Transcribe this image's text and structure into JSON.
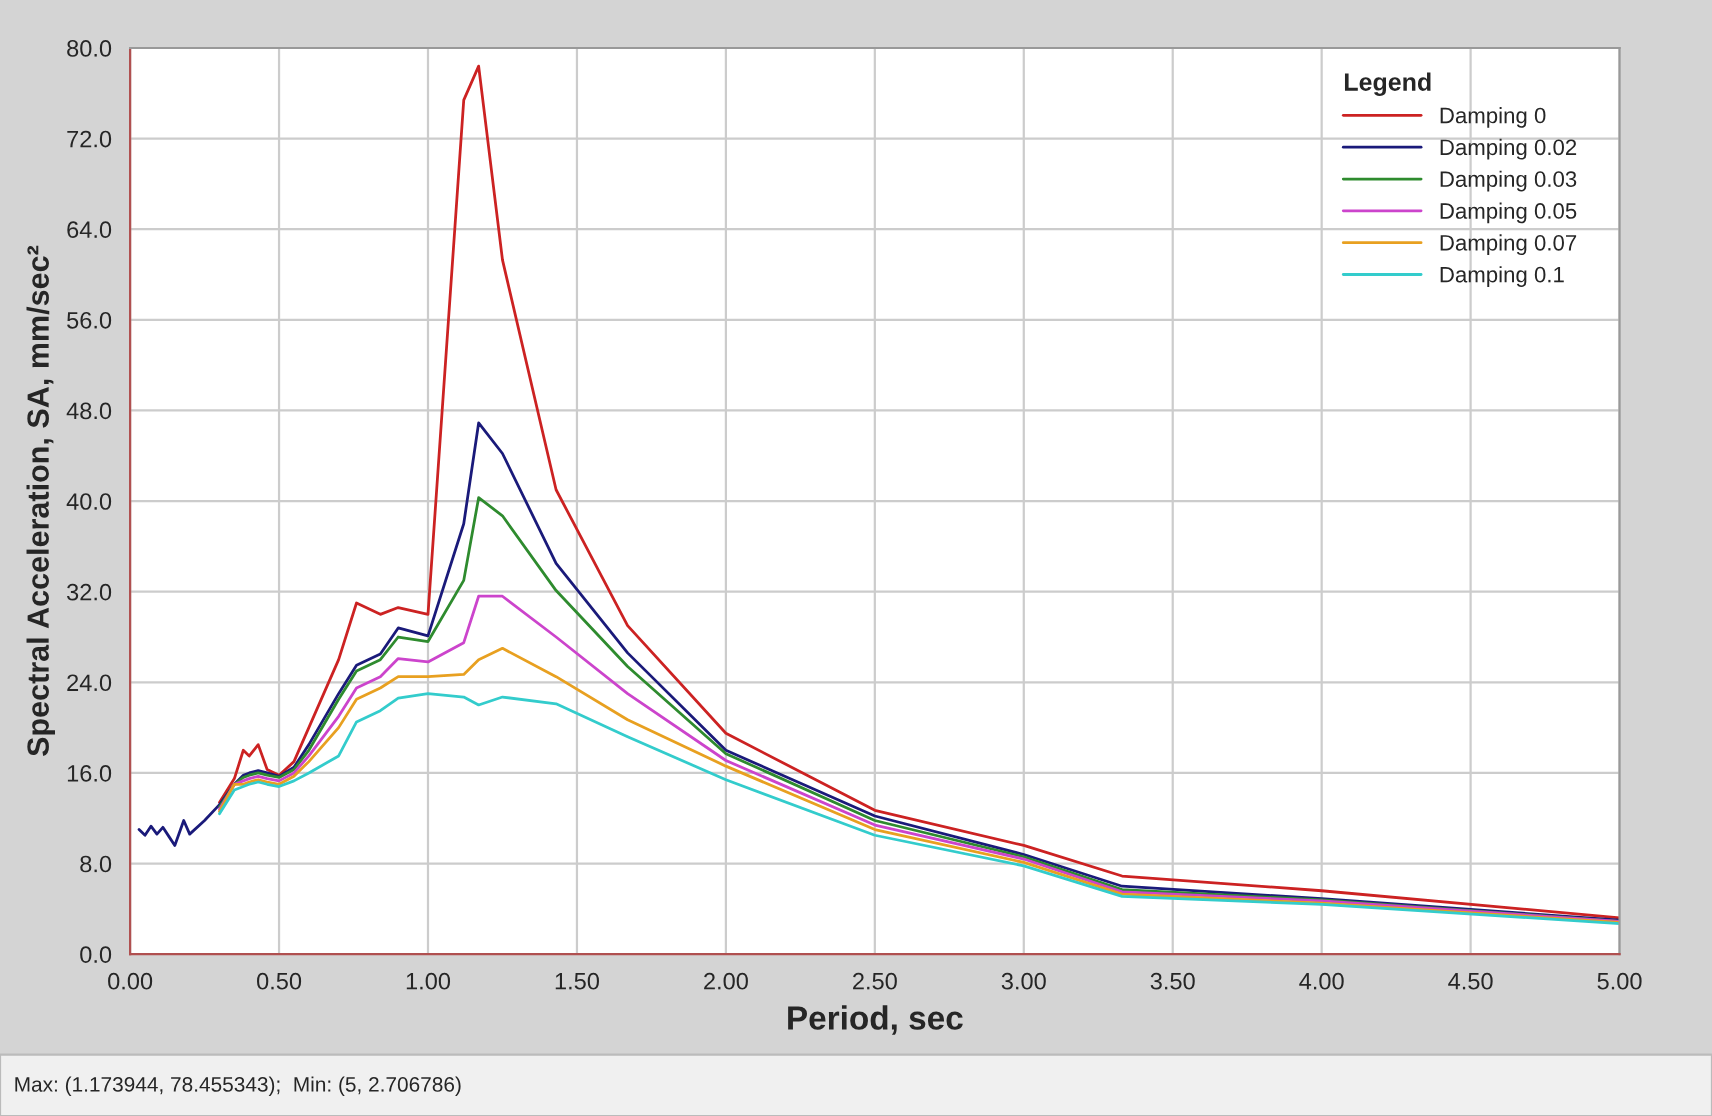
{
  "chart_data": {
    "type": "line",
    "xlabel": "Period, sec",
    "ylabel": "Spectral Acceleration, SA, mm/sec²",
    "legend_title": "Legend",
    "legend": "top right",
    "grid": true,
    "line_style": "solid",
    "marker": "none",
    "x": [
      0.03,
      0.05,
      0.07,
      0.09,
      0.11,
      0.13,
      0.15,
      0.18,
      0.2,
      0.25,
      0.3,
      0.35,
      0.38,
      0.4,
      0.43,
      0.46,
      0.5,
      0.55,
      0.6,
      0.7,
      0.76,
      0.84,
      0.9,
      1.0,
      1.12,
      1.17,
      1.25,
      1.43,
      1.67,
      2.0,
      2.5,
      3.0,
      3.33,
      4.0,
      5.0
    ],
    "series": [
      {
        "name": "Damping 0",
        "color": "#cc2222",
        "values": [
          null,
          null,
          null,
          null,
          null,
          null,
          null,
          null,
          null,
          null,
          13.4,
          15.5,
          18,
          17.5,
          18.5,
          16.3,
          15.8,
          17,
          20,
          26,
          31,
          30,
          30.6,
          30,
          75.4,
          78.4,
          61.3,
          41,
          29,
          19.5,
          12.7,
          9.6,
          6.9,
          5.6,
          3.2
        ]
      },
      {
        "name": "Damping 0.02",
        "color": "#1a1a7a",
        "values": [
          11,
          10.5,
          11.3,
          10.6,
          11.2,
          10.4,
          9.6,
          11.8,
          10.6,
          11.8,
          13.2,
          15,
          15.8,
          16,
          16.2,
          16,
          15.7,
          16.5,
          18.5,
          23,
          25.5,
          26.5,
          28.8,
          28.1,
          38,
          46.9,
          44.2,
          34.5,
          26.6,
          18,
          12.2,
          8.8,
          6,
          4.9,
          3.0
        ]
      },
      {
        "name": "Damping 0.03",
        "color": "#2e8b2e",
        "values": [
          null,
          null,
          null,
          null,
          null,
          null,
          null,
          null,
          null,
          null,
          13.0,
          15,
          15.6,
          15.8,
          16,
          15.8,
          15.6,
          16.3,
          18,
          22.5,
          25,
          26,
          28,
          27.6,
          33,
          40.3,
          38.7,
          32.1,
          25.4,
          17.7,
          11.8,
          8.6,
          5.7,
          4.8,
          2.9
        ]
      },
      {
        "name": "Damping 0.05",
        "color": "#cc44cc",
        "values": [
          null,
          null,
          null,
          null,
          null,
          null,
          null,
          null,
          null,
          null,
          12.8,
          15,
          15.3,
          15.5,
          15.7,
          15.5,
          15.3,
          16,
          17.5,
          21,
          23.5,
          24.5,
          26.1,
          25.8,
          27.5,
          31.6,
          31.6,
          28,
          23,
          17.1,
          11.4,
          8.4,
          5.5,
          4.7,
          2.9
        ]
      },
      {
        "name": "Damping 0.07",
        "color": "#e8a020",
        "values": [
          null,
          null,
          null,
          null,
          null,
          null,
          null,
          null,
          null,
          null,
          12.6,
          15,
          15,
          15.2,
          15.4,
          15.2,
          15,
          15.7,
          17,
          20,
          22.5,
          23.5,
          24.5,
          24.5,
          24.7,
          26,
          27,
          24.5,
          20.7,
          16.6,
          11,
          8.1,
          5.3,
          4.5,
          2.8
        ]
      },
      {
        "name": "Damping 0.1",
        "color": "#33cccc",
        "values": [
          null,
          null,
          null,
          null,
          null,
          null,
          null,
          null,
          null,
          null,
          12.4,
          14.5,
          14.8,
          15,
          15.2,
          15,
          14.8,
          15.3,
          16,
          17.5,
          20.5,
          21.5,
          22.6,
          23,
          22.7,
          22,
          22.7,
          22.1,
          19.2,
          15.4,
          10.5,
          7.8,
          5.1,
          4.4,
          2.7
        ]
      }
    ],
    "xlim": [
      0,
      5
    ],
    "ylim": [
      0,
      80
    ],
    "xticks": [
      {
        "value": 0,
        "label": "0.00"
      },
      {
        "value": 0.5,
        "label": "0.50"
      },
      {
        "value": 1,
        "label": "1.00"
      },
      {
        "value": 1.5,
        "label": "1.50"
      },
      {
        "value": 2,
        "label": "2.00"
      },
      {
        "value": 2.5,
        "label": "2.50"
      },
      {
        "value": 3,
        "label": "3.00"
      },
      {
        "value": 3.5,
        "label": "3.50"
      },
      {
        "value": 4,
        "label": "4.00"
      },
      {
        "value": 4.5,
        "label": "4.50"
      },
      {
        "value": 5,
        "label": "5.00"
      }
    ],
    "yticks": [
      {
        "value": 0,
        "label": "0.0"
      },
      {
        "value": 8,
        "label": "8.0"
      },
      {
        "value": 16,
        "label": "16.0"
      },
      {
        "value": 24,
        "label": "24.0"
      },
      {
        "value": 32,
        "label": "32.0"
      },
      {
        "value": 40,
        "label": "40.0"
      },
      {
        "value": 48,
        "label": "48.0"
      },
      {
        "value": 56,
        "label": "56.0"
      },
      {
        "value": 64,
        "label": "64.0"
      },
      {
        "value": 72,
        "label": "72.0"
      },
      {
        "value": 80,
        "label": "80.0"
      }
    ],
    "annotations": [
      "Max: (1.173944, 78.455343);  Min: (5, 2.706786)"
    ]
  }
}
